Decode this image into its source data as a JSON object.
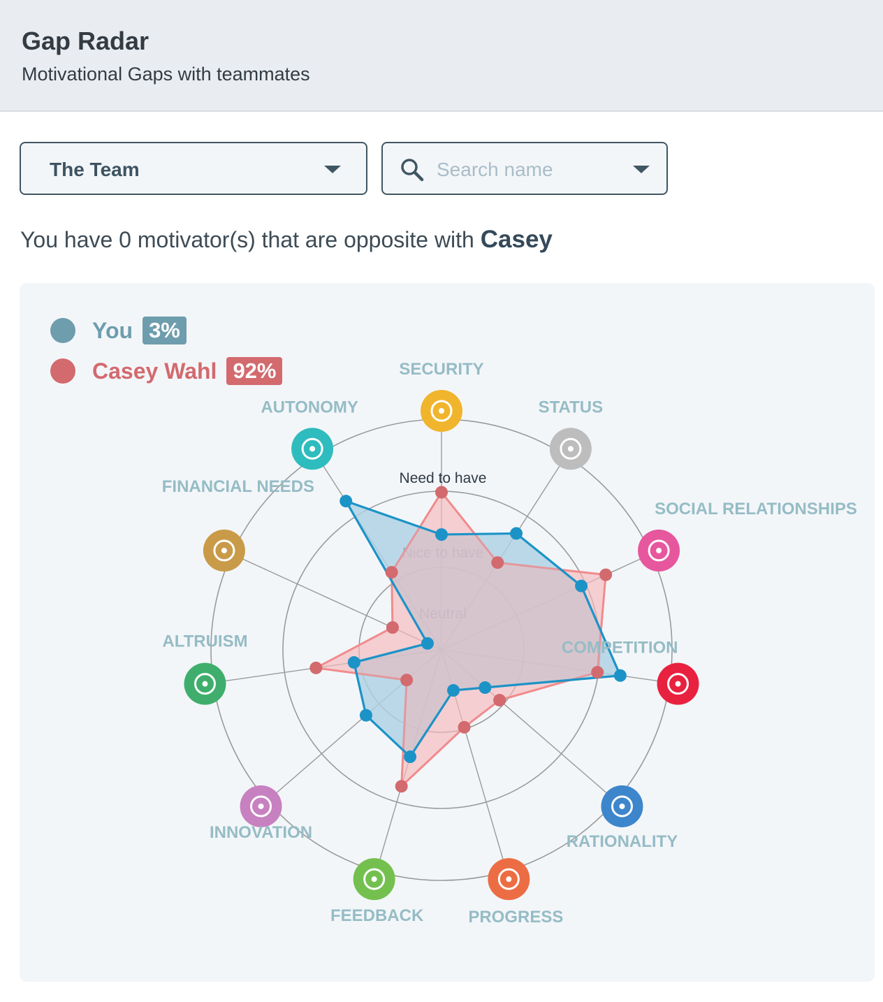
{
  "header": {
    "title": "Gap Radar",
    "subtitle": "Motivational Gaps with teammates"
  },
  "filters": {
    "team_value": "The Team",
    "search_placeholder": "Search name"
  },
  "summary": {
    "text": "You have 0 motivator(s) that are opposite with ",
    "name": "Casey"
  },
  "colors": {
    "you": "#1c93c7",
    "you_fill": "#a9d9ee",
    "you_legend": "#6e9dad",
    "casey": "#d26a6e",
    "casey_line": "#f08b8c",
    "casey_fill": "#f6b9bb",
    "overlap": "#b8bfd0"
  },
  "legend": {
    "you_label": "You",
    "you_badge": "3%",
    "casey_label": "Casey Wahl",
    "casey_badge": "92%"
  },
  "chart_data": {
    "type": "radar",
    "rings": [
      "Neutral",
      "Nice to have",
      "Need to have"
    ],
    "scale": [
      0,
      3
    ],
    "axes": [
      {
        "label": "SECURITY",
        "icon": "shield-check-icon",
        "color": "#f0b52d"
      },
      {
        "label": "STATUS",
        "icon": "crown-icon",
        "color": "#bdbdbd"
      },
      {
        "label": "SOCIAL RELATIONSHIPS",
        "icon": "handshake-icon",
        "color": "#e6579e"
      },
      {
        "label": "COMPETITION",
        "icon": "fist-icon",
        "color": "#e8213f"
      },
      {
        "label": "RATIONALITY",
        "icon": "magnifier-icon",
        "color": "#3d86cc"
      },
      {
        "label": "PROGRESS",
        "icon": "head-growth-icon",
        "color": "#ec6d44"
      },
      {
        "label": "FEEDBACK",
        "icon": "pointing-hand-icon",
        "color": "#74c04f"
      },
      {
        "label": "INNOVATION",
        "icon": "lightbulb-icon",
        "color": "#c781c0"
      },
      {
        "label": "ALTRUISM",
        "icon": "people-icon",
        "color": "#3fae6c"
      },
      {
        "label": "FINANCIAL NEEDS",
        "icon": "money-bag-icon",
        "color": "#c99a48"
      },
      {
        "label": "AUTONOMY",
        "icon": "kite-icon",
        "color": "#2fbcbe"
      }
    ],
    "series": [
      {
        "name": "You",
        "values": [
          1.5,
          1.8,
          2.0,
          2.35,
          0.75,
          0.55,
          1.45,
          1.3,
          1.15,
          0.2,
          2.3
        ]
      },
      {
        "name": "Casey Wahl",
        "values": [
          2.05,
          1.35,
          2.35,
          2.05,
          1.0,
          1.05,
          1.85,
          0.6,
          1.65,
          0.7,
          1.2
        ]
      }
    ]
  }
}
